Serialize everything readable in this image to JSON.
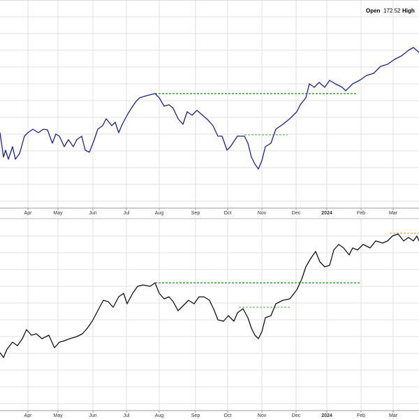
{
  "header": {
    "open_label": "Open",
    "open_value": 172.52,
    "high_label": "High"
  },
  "chart_data": [
    {
      "type": "line",
      "x": [
        0,
        5,
        8,
        12,
        18,
        22,
        28,
        35,
        40,
        47,
        55,
        62,
        68,
        75,
        80,
        85,
        92,
        98,
        105,
        110,
        117,
        122,
        128,
        135,
        140,
        147,
        152,
        160,
        165,
        170,
        175,
        182,
        188,
        195,
        200,
        210,
        222,
        228,
        235,
        242,
        248,
        255,
        262,
        268,
        275,
        282,
        290,
        298,
        305,
        312,
        318,
        325,
        330,
        340,
        350,
        355,
        360,
        365,
        370,
        375,
        380,
        388,
        395,
        405,
        415,
        425,
        430,
        438,
        443,
        450,
        457,
        465,
        472,
        480,
        490,
        495,
        505,
        515,
        525,
        535,
        545,
        555,
        565,
        575,
        585,
        592,
        600
      ],
      "series": [
        {
          "color": "#1f237a",
          "values": [
            108,
            73,
            83,
            70,
            88,
            70,
            78,
            103,
            108,
            113,
            108,
            113,
            112,
            93,
            106,
            103,
            88,
            98,
            88,
            98,
            103,
            83,
            80,
            98,
            113,
            118,
            128,
            118,
            123,
            108,
            120,
            133,
            143,
            153,
            158,
            161,
            164,
            158,
            146,
            148,
            143,
            128,
            120,
            138,
            133,
            140,
            133,
            126,
            118,
            103,
            103,
            83,
            88,
            103,
            103,
            93,
            73,
            63,
            56,
            68,
            88,
            93,
            113,
            120,
            128,
            138,
            148,
            158,
            178,
            173,
            180,
            173,
            183,
            178,
            173,
            168,
            178,
            183,
            190,
            193,
            203,
            206,
            213,
            218,
            226,
            230,
            223
          ]
        }
      ],
      "levels": [
        {
          "x": [
            222,
            512
          ],
          "y": 164,
          "color": "#1a8a1a"
        },
        {
          "x": [
            350,
            412
          ],
          "y": 105,
          "color": "#6fbf6f"
        }
      ],
      "xlim": [
        0,
        600
      ],
      "ylim": [
        0,
        298
      ],
      "xticks": [
        {
          "value": 40,
          "label": "Apr"
        },
        {
          "value": 83,
          "label": "May"
        },
        {
          "value": 133,
          "label": "Jun"
        },
        {
          "value": 181,
          "label": "Jul"
        },
        {
          "value": 228,
          "label": "Aug"
        },
        {
          "value": 280,
          "label": "Sep"
        },
        {
          "value": 326,
          "label": "Oct"
        },
        {
          "value": 375,
          "label": "Nov"
        },
        {
          "value": 424,
          "label": "Dec"
        },
        {
          "value": 468,
          "label": "2024"
        },
        {
          "value": 517,
          "label": "Feb"
        },
        {
          "value": 563,
          "label": "Mar"
        }
      ],
      "yticks": [
        10,
        34,
        58,
        82,
        106,
        130,
        154,
        178,
        202,
        226,
        250,
        274
      ],
      "grid": true
    },
    {
      "type": "line",
      "x": [
        0,
        5,
        10,
        18,
        25,
        32,
        38,
        45,
        52,
        60,
        70,
        78,
        85,
        92,
        100,
        110,
        118,
        125,
        132,
        140,
        148,
        155,
        162,
        170,
        177,
        182,
        190,
        197,
        205,
        215,
        222,
        228,
        235,
        242,
        248,
        255,
        262,
        270,
        278,
        285,
        292,
        300,
        307,
        312,
        320,
        327,
        335,
        340,
        348,
        355,
        360,
        365,
        370,
        375,
        380,
        388,
        395,
        405,
        415,
        425,
        432,
        438,
        445,
        452,
        458,
        465,
        472,
        478,
        485,
        492,
        500,
        505,
        512,
        520,
        530,
        538,
        548,
        555,
        562,
        570,
        578,
        585,
        592,
        597,
        600
      ],
      "series": [
        {
          "color": "#111111",
          "values": [
            83,
            76,
            88,
            98,
            93,
            103,
            116,
            108,
            110,
            103,
            108,
            90,
            98,
            100,
            103,
            106,
            110,
            118,
            128,
            143,
            158,
            156,
            148,
            163,
            168,
            153,
            168,
            178,
            180,
            178,
            183,
            168,
            160,
            163,
            156,
            143,
            150,
            158,
            153,
            163,
            163,
            158,
            143,
            130,
            128,
            136,
            128,
            140,
            146,
            133,
            118,
            108,
            103,
            113,
            133,
            136,
            153,
            158,
            160,
            173,
            188,
            206,
            218,
            228,
            213,
            206,
            208,
            230,
            238,
            233,
            223,
            233,
            230,
            238,
            233,
            243,
            240,
            243,
            250,
            253,
            243,
            248,
            243,
            250,
            243
          ]
        }
      ],
      "levels": [
        {
          "x": [
            222,
            515
          ],
          "y": 183,
          "color": "#1a8a1a"
        },
        {
          "x": [
            342,
            415
          ],
          "y": 148,
          "color": "#6fbf6f"
        },
        {
          "x": [
            558,
            600
          ],
          "y": 254,
          "color": "#e8a040"
        }
      ],
      "xlim": [
        0,
        600
      ],
      "ylim": [
        0,
        275
      ],
      "xticks": [
        {
          "value": 40,
          "label": "Apr"
        },
        {
          "value": 83,
          "label": "May"
        },
        {
          "value": 133,
          "label": "Jun"
        },
        {
          "value": 181,
          "label": "Jul"
        },
        {
          "value": 228,
          "label": "Aug"
        },
        {
          "value": 280,
          "label": "Sep"
        },
        {
          "value": 326,
          "label": "Oct"
        },
        {
          "value": 375,
          "label": "Nov"
        },
        {
          "value": 424,
          "label": "Dec"
        },
        {
          "value": 468,
          "label": "2024"
        },
        {
          "value": 517,
          "label": "Feb"
        },
        {
          "value": 563,
          "label": "Mar"
        }
      ],
      "yticks": [
        10,
        34,
        58,
        82,
        106,
        130,
        154,
        178,
        202,
        226,
        250
      ],
      "grid": true
    }
  ]
}
